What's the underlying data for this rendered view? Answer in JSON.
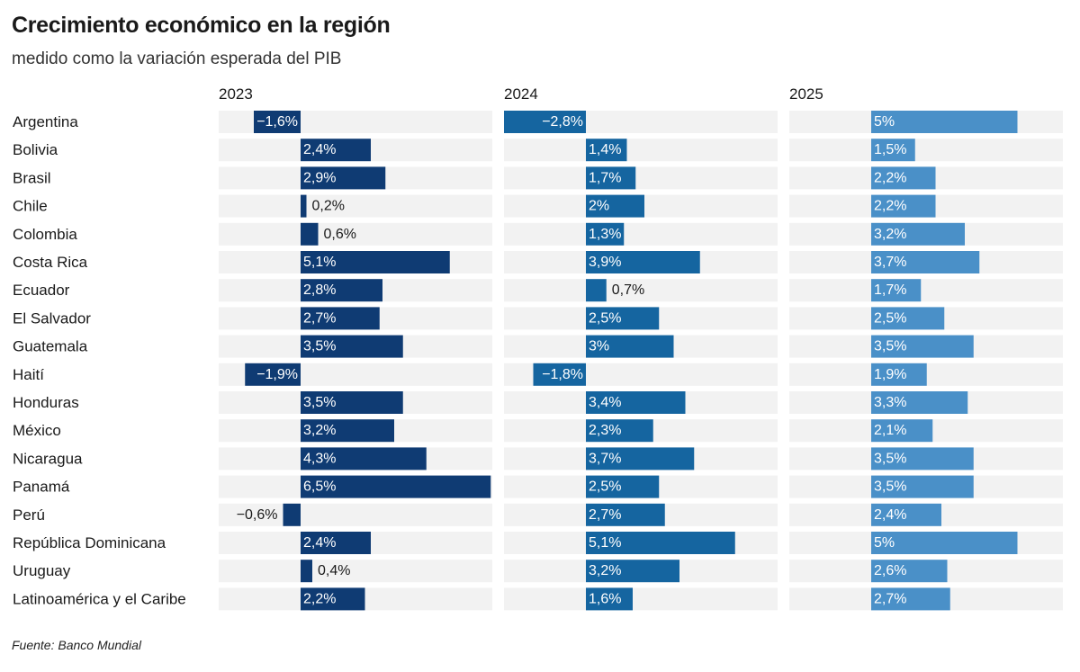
{
  "title": "Crecimiento económico en la región",
  "subtitle": "medido como la variación esperada del PIB",
  "source": "Fuente: Banco Mundial",
  "colors": {
    "2023": "#0f3b73",
    "2024": "#1565a0",
    "2025": "#4a90c8",
    "track": "#f2f2f2"
  },
  "chart_data": {
    "type": "bar",
    "orientation": "horizontal",
    "categories": [
      "Argentina",
      "Bolivia",
      "Brasil",
      "Chile",
      "Colombia",
      "Costa Rica",
      "Ecuador",
      "El Salvador",
      "Guatemala",
      "Haití",
      "Honduras",
      "México",
      "Nicaragua",
      "Panamá",
      "Perú",
      "República Dominicana",
      "Uruguay",
      "Latinoamérica y el Caribe"
    ],
    "series": [
      {
        "name": "2023",
        "values": [
          -1.6,
          2.4,
          2.9,
          0.2,
          0.6,
          5.1,
          2.8,
          2.7,
          3.5,
          -1.9,
          3.5,
          3.2,
          4.3,
          6.5,
          -0.6,
          2.4,
          0.4,
          2.2
        ],
        "labels": [
          "−1,6%",
          "2,4%",
          "2,9%",
          "0,2%",
          "0,6%",
          "5,1%",
          "2,8%",
          "2,7%",
          "3,5%",
          "−1,9%",
          "3,5%",
          "3,2%",
          "4,3%",
          "6,5%",
          "−0,6%",
          "2,4%",
          "0,4%",
          "2,2%"
        ]
      },
      {
        "name": "2024",
        "values": [
          -2.8,
          1.4,
          1.7,
          2.0,
          1.3,
          3.9,
          0.7,
          2.5,
          3.0,
          -1.8,
          3.4,
          2.3,
          3.7,
          2.5,
          2.7,
          5.1,
          3.2,
          1.6
        ],
        "labels": [
          "−2,8%",
          "1,4%",
          "1,7%",
          "2%",
          "1,3%",
          "3,9%",
          "0,7%",
          "2,5%",
          "3%",
          "−1,8%",
          "3,4%",
          "2,3%",
          "3,7%",
          "2,5%",
          "2,7%",
          "5,1%",
          "3,2%",
          "1,6%"
        ]
      },
      {
        "name": "2025",
        "values": [
          5.0,
          1.5,
          2.2,
          2.2,
          3.2,
          3.7,
          1.7,
          2.5,
          3.5,
          1.9,
          3.3,
          2.1,
          3.5,
          3.5,
          2.4,
          5.0,
          2.6,
          2.7
        ],
        "labels": [
          "5%",
          "1,5%",
          "2,2%",
          "2,2%",
          "3,2%",
          "3,7%",
          "1,7%",
          "2,5%",
          "3,5%",
          "1,9%",
          "3,3%",
          "2,1%",
          "3,5%",
          "3,5%",
          "2,4%",
          "5%",
          "2,6%",
          "2,7%"
        ]
      }
    ],
    "xlim": [
      -2.8,
      6.5
    ]
  }
}
